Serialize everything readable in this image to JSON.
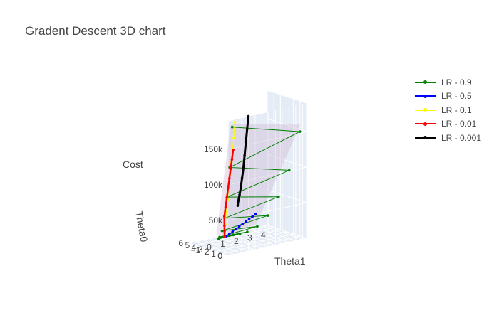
{
  "title": "Gradent Descent 3D chart",
  "colors": {
    "scene_bg": "#e5ecf6",
    "grid": "#ffffff",
    "surface": "#c9aecf"
  },
  "axes": {
    "z_label": "Cost",
    "y_label": "Theta0",
    "x_label": "Theta1",
    "z_ticks": [
      "0",
      "50k",
      "100k",
      "150k"
    ],
    "y_ticks": [
      "0",
      "1",
      "2",
      "3",
      "4",
      "5",
      "6"
    ],
    "x_ticks": [
      "−1",
      "0",
      "1",
      "2",
      "3",
      "4"
    ]
  },
  "chart_data": {
    "type": "scatter3d",
    "title": "Gradent Descent 3D chart",
    "xlabel": "Theta1",
    "ylabel": "Theta0",
    "zlabel": "Cost",
    "z_range": [
      0,
      190000
    ],
    "series": [
      {
        "name": "LR - 0.9",
        "color": "#008000",
        "points": [
          [
            -1.2,
            0,
            180000
          ],
          [
            4.0,
            0.4,
            150000
          ],
          [
            -1.0,
            0.8,
            120000
          ],
          [
            3.6,
            1.2,
            95000
          ],
          [
            -0.8,
            1.6,
            75000
          ],
          [
            3.2,
            2.0,
            57000
          ],
          [
            -0.6,
            2.4,
            42000
          ],
          [
            2.8,
            2.8,
            30000
          ],
          [
            -0.4,
            3.2,
            21000
          ],
          [
            2.4,
            3.6,
            14000
          ],
          [
            -0.2,
            4.0,
            9000
          ],
          [
            2.0,
            4.3,
            6000
          ],
          [
            0.0,
            4.6,
            4000
          ],
          [
            1.7,
            4.8,
            3000
          ],
          [
            0.2,
            5.0,
            2000
          ],
          [
            1.4,
            5.2,
            1500
          ],
          [
            0.4,
            5.3,
            1000
          ],
          [
            1.2,
            5.4,
            800
          ],
          [
            0.6,
            5.45,
            600
          ],
          [
            1.0,
            5.5,
            500
          ]
        ]
      },
      {
        "name": "LR - 0.5",
        "color": "#0000ff",
        "points": [
          [
            1.0,
            5.5,
            500
          ],
          [
            1.1,
            5.2,
            4000
          ],
          [
            1.2,
            4.9,
            8000
          ],
          [
            1.3,
            4.6,
            12000
          ],
          [
            1.4,
            4.3,
            16000
          ],
          [
            1.5,
            4.0,
            20000
          ],
          [
            1.6,
            3.7,
            24000
          ],
          [
            1.7,
            3.4,
            28000
          ],
          [
            1.8,
            3.1,
            32000
          ],
          [
            1.9,
            2.8,
            36000
          ]
        ]
      },
      {
        "name": "LR - 0.1",
        "color": "#ffff00",
        "points": [
          [
            0.9,
            5.5,
            600
          ],
          [
            0.7,
            5.0,
            20000
          ],
          [
            0.5,
            4.4,
            40000
          ],
          [
            0.3,
            3.8,
            60000
          ],
          [
            0.1,
            3.2,
            80000
          ],
          [
            -0.1,
            2.6,
            100000
          ],
          [
            -0.3,
            2.0,
            120000
          ],
          [
            -0.5,
            1.4,
            140000
          ],
          [
            -0.7,
            0.8,
            160000
          ],
          [
            -0.9,
            0.2,
            185000
          ]
        ]
      },
      {
        "name": "LR - 0.01",
        "color": "#ff0000",
        "points": [
          [
            0.9,
            5.5,
            500
          ],
          [
            0.7,
            5.1,
            10000
          ],
          [
            0.5,
            4.7,
            20000
          ],
          [
            0.3,
            4.3,
            35000
          ],
          [
            0.2,
            3.9,
            50000
          ],
          [
            0.1,
            3.5,
            65000
          ],
          [
            0.0,
            3.1,
            80000
          ],
          [
            -0.1,
            2.7,
            95000
          ],
          [
            -0.2,
            2.3,
            110000
          ],
          [
            -0.3,
            1.9,
            125000
          ],
          [
            -0.4,
            1.5,
            140000
          ]
        ]
      },
      {
        "name": "LR - 0.001",
        "color": "#000000",
        "points": [
          [
            0.0,
            0.0,
            190000
          ],
          [
            0.1,
            0.4,
            170000
          ],
          [
            0.2,
            0.8,
            150000
          ],
          [
            0.3,
            1.2,
            130000
          ],
          [
            0.4,
            1.6,
            110000
          ],
          [
            0.5,
            2.0,
            95000
          ],
          [
            0.6,
            2.4,
            80000
          ],
          [
            0.7,
            2.8,
            68000
          ],
          [
            0.8,
            3.2,
            58000
          ],
          [
            0.9,
            3.5,
            50000
          ]
        ]
      }
    ]
  }
}
